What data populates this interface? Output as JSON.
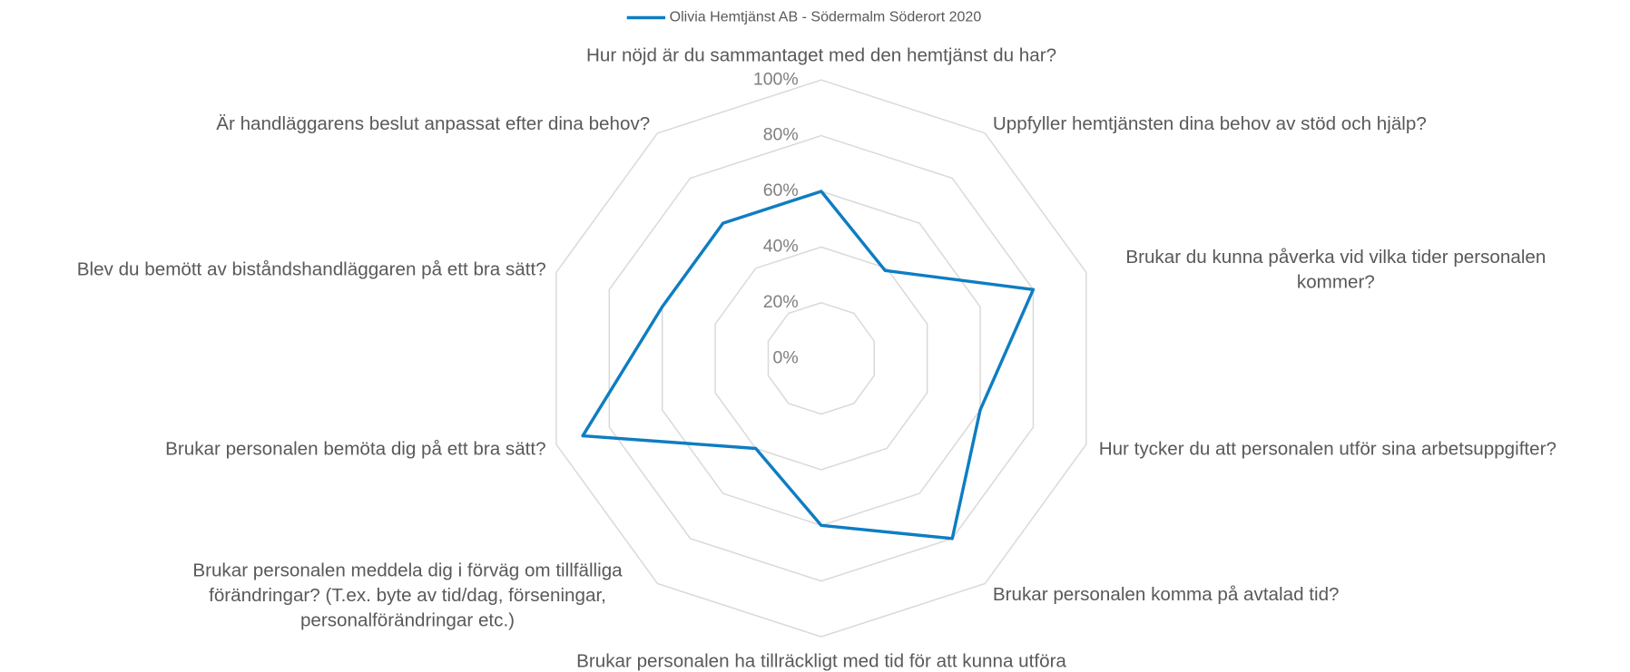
{
  "chart_data": {
    "type": "radar",
    "categories": [
      "Hur nöjd är du sammantaget med den hemtjänst du har?",
      "Uppfyller hemtjänsten dina behov av stöd och hjälp?",
      "Brukar du kunna påverka vid vilka tider personalen kommer?",
      "Hur tycker du att personalen utför sina arbetsuppgifter?",
      "Brukar personalen komma på avtalad tid?",
      "Brukar personalen ha tillräckligt med tid för att kunna utföra",
      "Brukar personalen meddela dig i förväg om tillfälliga förändringar? (T.ex. byte av tid/dag, förseningar, personalförändringar etc.)",
      "Brukar personalen bemöta dig på ett bra sätt?",
      "Blev du bemött av biståndshandläggaren på ett bra sätt?",
      "Är handläggarens beslut anpassat efter dina behov?"
    ],
    "series": [
      {
        "name": "Olivia Hemtjänst AB - Södermalm Söderort  2020",
        "color": "#0e7dc2",
        "values": [
          60,
          39,
          80,
          60,
          80,
          60,
          40,
          90,
          60,
          60
        ]
      }
    ],
    "rlim": [
      0,
      100
    ],
    "rticks": [
      {
        "value": 0,
        "label": "0%"
      },
      {
        "value": 20,
        "label": "20%"
      },
      {
        "value": 40,
        "label": "40%"
      },
      {
        "value": 60,
        "label": "60%"
      },
      {
        "value": 80,
        "label": "80%"
      },
      {
        "value": 100,
        "label": "100%"
      }
    ],
    "grid": true,
    "legend": "top"
  }
}
